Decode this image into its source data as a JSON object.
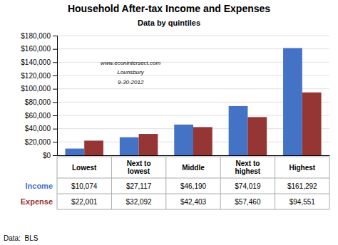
{
  "chart_data": {
    "type": "bar",
    "title": "Household After-tax Income and Expenses",
    "subtitle": "Data by quintiles",
    "categories": [
      "Lowest",
      "Next to\nlowest",
      "Middle",
      "Next to\nhighest",
      "Highest"
    ],
    "series": [
      {
        "name": "Income",
        "color": "#4472C4",
        "values": [
          10074,
          27117,
          46190,
          74019,
          161292
        ],
        "value_labels": [
          "$10,074",
          "$27,117",
          "$46,190",
          "$74,019",
          "$161,292"
        ]
      },
      {
        "name": "Expense",
        "color": "#963634",
        "values": [
          22001,
          32092,
          42403,
          57460,
          94551
        ],
        "value_labels": [
          "$22,001",
          "$32,092",
          "$42,403",
          "$57,460",
          "$94,551"
        ]
      }
    ],
    "ylim": [
      0,
      180000
    ],
    "yticks": [
      {
        "value": 0,
        "label": "$0"
      },
      {
        "value": 20000,
        "label": "$20,000"
      },
      {
        "value": 40000,
        "label": "$40,000"
      },
      {
        "value": 60000,
        "label": "$60,000"
      },
      {
        "value": 80000,
        "label": "$80,000"
      },
      {
        "value": 100000,
        "label": "$100,000"
      },
      {
        "value": 120000,
        "label": "$120,000"
      },
      {
        "value": 140000,
        "label": "$140,000"
      },
      {
        "value": 160000,
        "label": "$160,000"
      },
      {
        "value": 180000,
        "label": "$180,000"
      }
    ],
    "grid": true,
    "annotations": [
      "www.econintersect.com",
      "Lounsbury",
      "9-30-2012"
    ],
    "footnote": "Data:  BLS"
  }
}
